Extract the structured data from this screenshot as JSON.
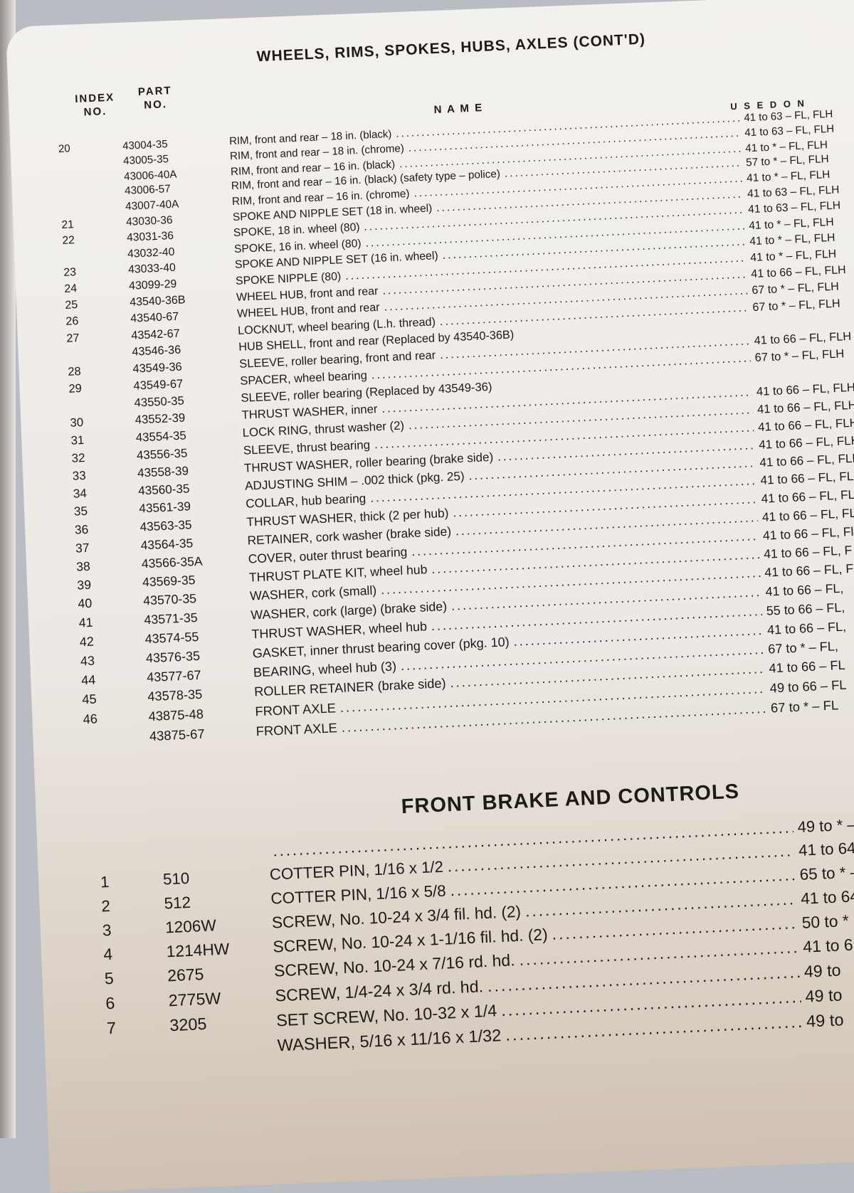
{
  "section1": {
    "title": "WHEELS, RIMS, SPOKES, HUBS, AXLES (CONT'D)",
    "headers": {
      "index": "INDEX NO.",
      "part": "PART NO.",
      "name": "N A M E",
      "used_on": "U S E D   O N"
    },
    "rows": [
      {
        "index": "20",
        "part": "43004-35",
        "name": "RIM, front and rear – 18 in. (black)",
        "used": "41 to 63 – FL, FLH"
      },
      {
        "index": "",
        "part": "43005-35",
        "name": "RIM, front and rear – 18 in. (chrome)",
        "used": "41 to 63 – FL, FLH"
      },
      {
        "index": "",
        "part": "43006-40A",
        "name": "RIM, front and rear – 16 in. (black)",
        "used": "41 to * – FL, FLH"
      },
      {
        "index": "",
        "part": "43006-57",
        "name": "RIM, front and rear – 16 in. (black) (safety type – police)",
        "used": "57 to * – FL, FLH"
      },
      {
        "index": "",
        "part": "43007-40A",
        "name": "RIM, front and rear – 16 in. (chrome)",
        "used": "41 to * – FL, FLH"
      },
      {
        "index": "21",
        "part": "43030-36",
        "name": "SPOKE AND NIPPLE SET (18 in. wheel)",
        "used": "41 to 63 – FL, FLH"
      },
      {
        "index": "22",
        "part": "43031-36",
        "name": "SPOKE, 18 in. wheel (80)",
        "used": "41 to 63 – FL, FLH"
      },
      {
        "index": "",
        "part": "43032-40",
        "name": "SPOKE, 16 in. wheel (80)",
        "used": "41 to * – FL, FLH"
      },
      {
        "index": "23",
        "part": "43033-40",
        "name": "SPOKE AND NIPPLE SET (16 in. wheel)",
        "used": "41 to * – FL, FLH"
      },
      {
        "index": "24",
        "part": "43099-29",
        "name": "SPOKE NIPPLE (80)",
        "used": "41 to * – FL, FLH"
      },
      {
        "index": "25",
        "part": "43540-36B",
        "name": "WHEEL HUB, front and rear",
        "used": "41 to 66 – FL, FLH"
      },
      {
        "index": "26",
        "part": "43540-67",
        "name": "WHEEL HUB, front and rear",
        "used": "67 to * – FL, FLH"
      },
      {
        "index": "27",
        "part": "43542-67",
        "name": "LOCKNUT, wheel bearing (L.h. thread)",
        "used": "67 to * – FL, FLH"
      },
      {
        "index": "",
        "part": "43546-36",
        "name": "HUB SHELL, front and rear (Replaced by 43540-36B)",
        "used": ""
      },
      {
        "index": "28",
        "part": "43549-36",
        "name": "SLEEVE, roller bearing, front and rear",
        "used": "41 to 66 – FL, FLH"
      },
      {
        "index": "29",
        "part": "43549-67",
        "name": "SPACER, wheel bearing",
        "used": "67 to * – FL, FLH"
      },
      {
        "index": "",
        "part": "43550-35",
        "name": "SLEEVE, roller bearing (Replaced by 43549-36)",
        "used": ""
      },
      {
        "index": "30",
        "part": "43552-39",
        "name": "THRUST WASHER, inner",
        "used": "41 to 66 – FL, FLH"
      },
      {
        "index": "31",
        "part": "43554-35",
        "name": "LOCK RING, thrust washer (2)",
        "used": "41 to 66 – FL, FLH"
      },
      {
        "index": "32",
        "part": "43556-35",
        "name": "SLEEVE, thrust bearing",
        "used": "41 to 66 – FL, FLH"
      },
      {
        "index": "33",
        "part": "43558-39",
        "name": "THRUST WASHER, roller bearing (brake side)",
        "used": "41 to 66 – FL, FLH"
      },
      {
        "index": "34",
        "part": "43560-35",
        "name": "ADJUSTING SHIM – .002 thick (pkg. 25)",
        "used": "41 to 66 – FL, FLH"
      },
      {
        "index": "35",
        "part": "43561-39",
        "name": "COLLAR, hub bearing",
        "used": "41 to 66 – FL, FLH"
      },
      {
        "index": "36",
        "part": "43563-35",
        "name": "THRUST WASHER, thick (2 per hub)",
        "used": "41 to 66 – FL, FL"
      },
      {
        "index": "37",
        "part": "43564-35",
        "name": "RETAINER, cork washer (brake side)",
        "used": "41 to 66 – FL, FL"
      },
      {
        "index": "38",
        "part": "43566-35A",
        "name": "COVER, outer thrust bearing",
        "used": "41 to 66 – FL, Fl"
      },
      {
        "index": "39",
        "part": "43569-35",
        "name": "THRUST PLATE KIT, wheel hub",
        "used": "41 to 66 – FL, F"
      },
      {
        "index": "40",
        "part": "43570-35",
        "name": "WASHER, cork (small)",
        "used": "41 to 66 – FL, F"
      },
      {
        "index": "41",
        "part": "43571-35",
        "name": "WASHER, cork (large) (brake side)",
        "used": "41 to 66 – FL,"
      },
      {
        "index": "42",
        "part": "43574-55",
        "name": "THRUST WASHER, wheel hub",
        "used": "55 to 66 – FL,"
      },
      {
        "index": "43",
        "part": "43576-35",
        "name": "GASKET, inner thrust bearing cover (pkg. 10)",
        "used": "41 to 66 – FL,"
      },
      {
        "index": "44",
        "part": "43577-67",
        "name": "BEARING, wheel hub (3)",
        "used": "67 to * – FL,"
      },
      {
        "index": "45",
        "part": "43578-35",
        "name": "ROLLER RETAINER (brake side)",
        "used": "41 to 66 – FL"
      },
      {
        "index": "46",
        "part": "43875-48",
        "name": "FRONT AXLE",
        "used": "49 to 66 – FL"
      },
      {
        "index": "",
        "part": "43875-67",
        "name": "FRONT AXLE",
        "used": "67 to * – FL"
      }
    ]
  },
  "section2": {
    "title": "FRONT BRAKE AND CONTROLS",
    "rows": [
      {
        "index": "",
        "part": "",
        "name": "",
        "used": "49 to * –"
      },
      {
        "index": "1",
        "part": "510",
        "name": "COTTER PIN, 1/16 x 1/2",
        "used": "41 to 64"
      },
      {
        "index": "2",
        "part": "512",
        "name": "COTTER PIN, 1/16 x 5/8",
        "used": "65 to * –"
      },
      {
        "index": "3",
        "part": "1206W",
        "name": "SCREW, No. 10-24 x 3/4 fil. hd. (2)",
        "used": "41 to 64"
      },
      {
        "index": "4",
        "part": "1214HW",
        "name": "SCREW, No. 10-24 x 1-1/16 fil. hd. (2)",
        "used": "50 to *"
      },
      {
        "index": "5",
        "part": "2675",
        "name": "SCREW, No. 10-24 x 7/16 rd. hd.",
        "used": "41 to 6"
      },
      {
        "index": "6",
        "part": "2775W",
        "name": "SCREW, 1/4-24 x 3/4 rd. hd.",
        "used": "49 to"
      },
      {
        "index": "7",
        "part": "3205",
        "name": "SET SCREW, No. 10-32 x 1/4",
        "used": "49 to"
      },
      {
        "index": "",
        "part": "",
        "name": "WASHER, 5/16 x 11/16 x 1/32",
        "used": "49 to"
      }
    ]
  }
}
